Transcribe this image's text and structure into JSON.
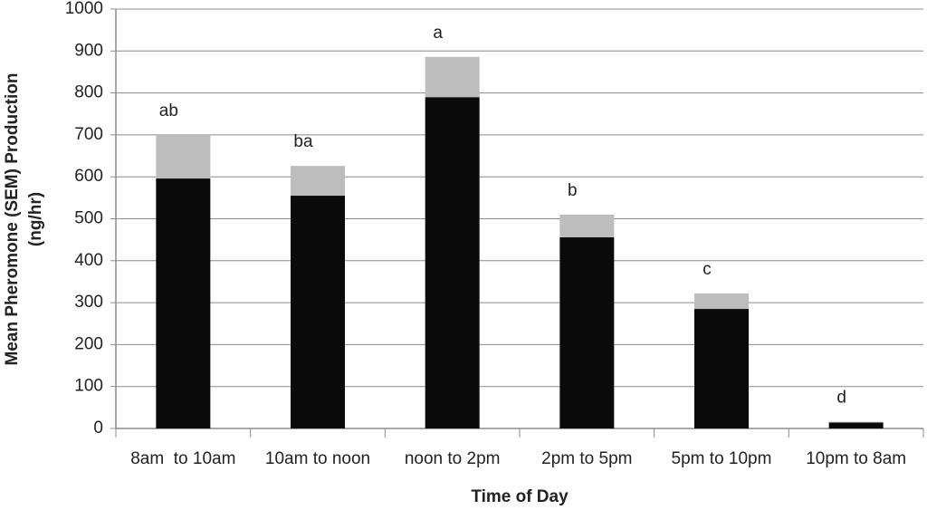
{
  "chart_data": {
    "type": "stacked-bar",
    "xlabel": "Time of Day",
    "ylabel": [
      "Mean Pheromone (SEM) Production",
      "(ng/hr)"
    ],
    "categories": [
      "8am  to 10am",
      "10am to noon",
      "noon to 2pm",
      "2pm to 5pm",
      "5pm to 10pm",
      "10pm to 8am"
    ],
    "series": [
      {
        "color": "#0a0a0a",
        "values": [
          596,
          555,
          790,
          456,
          285,
          14
        ]
      },
      {
        "color": "#bdbdbd",
        "values": [
          104,
          71,
          96,
          54,
          37,
          2
        ]
      }
    ],
    "annotations": [
      "ab",
      "ba",
      "a",
      "b",
      "c",
      "d"
    ],
    "ylim": [
      0,
      1000
    ],
    "yticks": [
      0,
      100,
      200,
      300,
      400,
      500,
      600,
      700,
      800,
      900,
      1000
    ],
    "grid": true
  }
}
